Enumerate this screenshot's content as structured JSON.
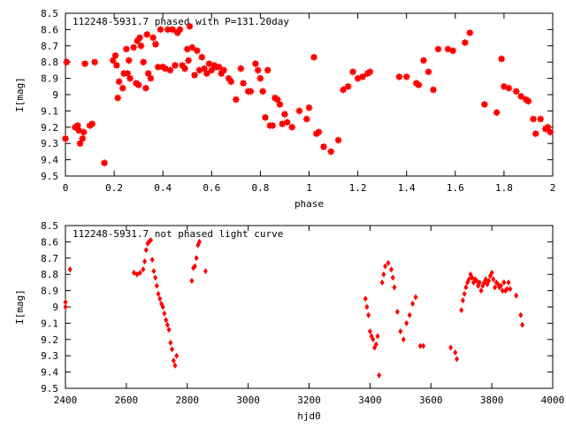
{
  "chart_data": [
    {
      "type": "scatter",
      "title": "112248-5931.7 phased with P=131.20day",
      "xlabel": "phase",
      "ylabel": "I[mag]",
      "xlim": [
        0,
        2
      ],
      "ylim": [
        8.5,
        9.5
      ],
      "y_inverted": true,
      "x_ticks": [
        0,
        0.2,
        0.4,
        0.6,
        0.8,
        1,
        1.2,
        1.4,
        1.6,
        1.8,
        2
      ],
      "y_ticks": [
        8.5,
        8.6,
        8.7,
        8.8,
        8.9,
        9,
        9.1,
        9.2,
        9.3,
        9.4,
        9.5
      ],
      "marker_color": "#ff0000",
      "marker": "plus-box",
      "grid": false,
      "series": [
        {
          "x": [
            0.0,
            0.005,
            0.04,
            0.05,
            0.055,
            0.06,
            0.07,
            0.075,
            0.08,
            0.1,
            0.11,
            0.12,
            0.16,
            0.195,
            0.205,
            0.21,
            0.215,
            0.22,
            0.235,
            0.24,
            0.25,
            0.255,
            0.26,
            0.265,
            0.28,
            0.29,
            0.295,
            0.3,
            0.305,
            0.31,
            0.32,
            0.33,
            0.335,
            0.34,
            0.35,
            0.36,
            0.37,
            0.38,
            0.39,
            0.4,
            0.41,
            0.42,
            0.43,
            0.44,
            0.45,
            0.46,
            0.47,
            0.48,
            0.49,
            0.5,
            0.505,
            0.51,
            0.52,
            0.53,
            0.54,
            0.55,
            0.56,
            0.57,
            0.58,
            0.59,
            0.6,
            0.61,
            0.62,
            0.63,
            0.64,
            0.65,
            0.67,
            0.68,
            0.7,
            0.72,
            0.73,
            0.75,
            0.76,
            0.78,
            0.79,
            0.8,
            0.81,
            0.82,
            0.83,
            0.84,
            0.85,
            0.86,
            0.87,
            0.88,
            0.89,
            0.9,
            0.91,
            0.93,
            0.96,
            0.99,
            1.0,
            1.02,
            1.03,
            1.04,
            1.06,
            1.09,
            1.12,
            1.14,
            1.16,
            1.18,
            1.2,
            1.22,
            1.24,
            1.25,
            1.37,
            1.4,
            1.44,
            1.45,
            1.47,
            1.49,
            1.51,
            1.53,
            1.57,
            1.59,
            1.64,
            1.66,
            1.72,
            1.77,
            1.79,
            1.8,
            1.82,
            1.85,
            1.87,
            1.89,
            1.9,
            1.92,
            1.93,
            1.95,
            1.97,
            1.98,
            1.99
          ],
          "y": [
            9.27,
            8.8,
            9.2,
            9.19,
            9.22,
            9.3,
            9.27,
            9.23,
            8.81,
            9.19,
            9.18,
            8.8,
            9.42,
            8.79,
            8.76,
            8.82,
            9.02,
            8.92,
            8.96,
            8.87,
            8.72,
            8.87,
            8.79,
            8.9,
            8.71,
            8.93,
            8.67,
            8.94,
            8.65,
            8.7,
            8.8,
            8.96,
            8.63,
            8.87,
            8.9,
            8.65,
            8.69,
            8.83,
            8.6,
            8.83,
            8.84,
            8.6,
            8.85,
            8.6,
            8.82,
            8.62,
            8.6,
            8.82,
            8.84,
            8.72,
            8.79,
            8.58,
            8.71,
            8.88,
            8.73,
            8.85,
            8.77,
            8.84,
            8.87,
            8.81,
            8.85,
            8.82,
            8.83,
            8.83,
            8.87,
            8.85,
            8.9,
            8.92,
            9.03,
            8.84,
            8.93,
            8.98,
            8.98,
            8.81,
            8.85,
            8.9,
            8.98,
            9.14,
            8.85,
            9.19,
            9.19,
            9.02,
            9.03,
            9.06,
            9.18,
            9.12,
            9.17,
            9.2,
            9.1,
            9.15,
            9.08,
            8.77,
            9.24,
            9.23,
            9.32,
            9.35,
            9.28,
            8.97,
            8.95,
            8.86,
            8.9,
            8.89,
            8.87,
            8.86,
            8.89,
            8.89,
            8.93,
            8.94,
            8.79,
            8.86,
            8.97,
            8.72,
            8.72,
            8.73,
            8.68,
            8.62,
            9.06,
            9.11,
            8.78,
            8.95,
            8.96,
            8.98,
            9.01,
            9.03,
            9.04,
            9.15,
            9.24,
            9.15,
            9.21,
            9.2,
            9.23
          ]
        }
      ]
    },
    {
      "type": "scatter",
      "title": "112248-5931.7 not phased light curve",
      "xlabel": "hjd0",
      "ylabel": "I[mag]",
      "xlim": [
        2400,
        4000
      ],
      "ylim": [
        8.5,
        9.5
      ],
      "y_inverted": true,
      "x_ticks": [
        2400,
        2600,
        2800,
        3000,
        3200,
        3400,
        3600,
        3800,
        4000
      ],
      "y_ticks": [
        8.5,
        8.6,
        8.7,
        8.8,
        8.9,
        9,
        9.1,
        9.2,
        9.3,
        9.4,
        9.5
      ],
      "marker_color": "#ff0000",
      "marker": "diamond",
      "grid": false,
      "series": [
        {
          "x": [
            2400,
            2400,
            2415,
            2625,
            2635,
            2645,
            2655,
            2660,
            2665,
            2670,
            2675,
            2680,
            2685,
            2690,
            2695,
            2700,
            2705,
            2710,
            2715,
            2720,
            2725,
            2730,
            2735,
            2740,
            2745,
            2750,
            2755,
            2760,
            2765,
            2815,
            2820,
            2825,
            2830,
            2835,
            2840,
            2860,
            3385,
            3390,
            3395,
            3400,
            3405,
            3410,
            3415,
            3420,
            3425,
            3430,
            3440,
            3445,
            3450,
            3460,
            3470,
            3475,
            3480,
            3490,
            3500,
            3510,
            3520,
            3530,
            3540,
            3550,
            3565,
            3575,
            3665,
            3680,
            3685,
            3700,
            3705,
            3710,
            3715,
            3720,
            3725,
            3730,
            3735,
            3740,
            3745,
            3750,
            3755,
            3760,
            3765,
            3770,
            3775,
            3780,
            3785,
            3790,
            3795,
            3800,
            3805,
            3810,
            3815,
            3820,
            3825,
            3830,
            3835,
            3840,
            3845,
            3850,
            3855,
            3860,
            3880,
            3895,
            3900
          ],
          "y": [
            9.0,
            8.97,
            8.77,
            8.79,
            8.8,
            8.79,
            8.77,
            8.72,
            8.65,
            8.61,
            8.6,
            8.59,
            8.71,
            8.78,
            8.82,
            8.87,
            8.92,
            8.95,
            8.98,
            9.0,
            9.04,
            9.08,
            9.11,
            9.14,
            9.22,
            9.26,
            9.33,
            9.36,
            9.3,
            8.84,
            8.76,
            8.75,
            8.7,
            8.62,
            8.6,
            8.78,
            8.95,
            9.0,
            9.05,
            9.15,
            9.18,
            9.2,
            9.25,
            9.23,
            9.18,
            9.42,
            8.85,
            8.8,
            8.75,
            8.73,
            8.77,
            8.82,
            8.88,
            9.03,
            9.15,
            9.2,
            9.1,
            9.05,
            8.98,
            8.94,
            9.24,
            9.24,
            9.25,
            9.28,
            9.32,
            9.02,
            8.96,
            8.92,
            8.88,
            8.85,
            8.83,
            8.8,
            8.82,
            8.85,
            8.83,
            8.84,
            8.87,
            8.85,
            8.9,
            8.87,
            8.85,
            8.83,
            8.86,
            8.84,
            8.81,
            8.79,
            8.83,
            8.88,
            8.85,
            8.86,
            8.88,
            8.87,
            8.9,
            8.85,
            8.9,
            8.89,
            8.85,
            8.89,
            8.93,
            9.05,
            9.11
          ]
        }
      ]
    }
  ]
}
